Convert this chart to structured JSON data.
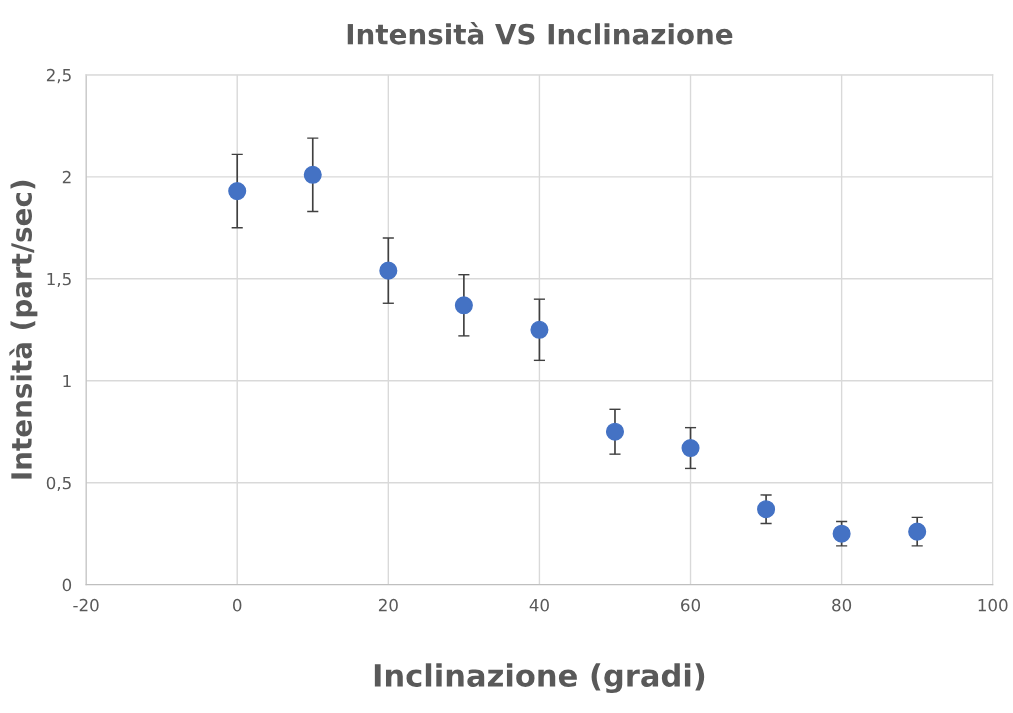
{
  "chart_data": {
    "type": "scatter",
    "title": "Intensità VS Inclinazione",
    "xlabel": "Inclinazione (gradi)",
    "ylabel": "Intensità (part/sec)",
    "x": [
      0,
      10,
      20,
      30,
      40,
      50,
      60,
      70,
      80,
      90
    ],
    "series": [
      {
        "color": "#4472c4",
        "values": [
          1.93,
          2.01,
          1.54,
          1.37,
          1.25,
          0.75,
          0.67,
          0.37,
          0.25,
          0.26
        ],
        "errors": [
          0.18,
          0.18,
          0.16,
          0.15,
          0.15,
          0.11,
          0.1,
          0.07,
          0.06,
          0.07
        ]
      }
    ],
    "xlim": [
      -20,
      100
    ],
    "xticks": [
      -20,
      0,
      20,
      40,
      60,
      80,
      100
    ],
    "ylim": [
      0,
      2.5
    ],
    "yticks": [
      0,
      {
        "value": 0.5,
        "label": "0,5"
      },
      1,
      {
        "value": 1.5,
        "label": "1,5"
      },
      2,
      {
        "value": 2.5,
        "label": "2,5"
      }
    ],
    "grid": true,
    "marker": "circle"
  }
}
